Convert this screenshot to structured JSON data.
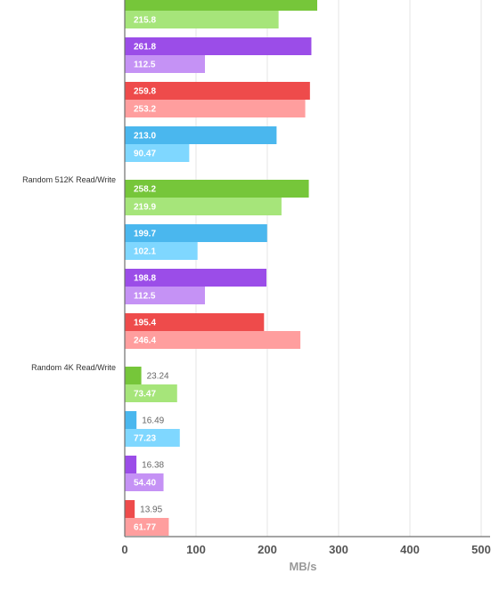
{
  "chart_data": {
    "type": "bar",
    "orientation": "horizontal",
    "xlabel": "MB/s",
    "xlim": [
      0,
      500
    ],
    "xticks": [
      0,
      100,
      200,
      300,
      400,
      500
    ],
    "grid": true,
    "groups": [
      {
        "label": "",
        "bars": [
          {
            "values": [
              270.0,
              215.8
            ],
            "labels": [
              "",
              "215.8"
            ],
            "colors": [
              "#76c63a",
              "#a6e57a"
            ]
          },
          {
            "values": [
              261.8,
              112.5
            ],
            "labels": [
              "261.8",
              "112.5"
            ],
            "colors": [
              "#9b4de8",
              "#c592f5"
            ]
          },
          {
            "values": [
              259.8,
              253.2
            ],
            "labels": [
              "259.8",
              "253.2"
            ],
            "colors": [
              "#ee4b4b",
              "#ff9e9e"
            ]
          },
          {
            "values": [
              213.0,
              90.47
            ],
            "labels": [
              "213.0",
              "90.47"
            ],
            "colors": [
              "#4ab7ee",
              "#7fd7ff"
            ]
          }
        ]
      },
      {
        "label": "Random 512K Read/Write",
        "bars": [
          {
            "values": [
              258.2,
              219.9
            ],
            "labels": [
              "258.2",
              "219.9"
            ],
            "colors": [
              "#76c63a",
              "#a6e57a"
            ]
          },
          {
            "values": [
              199.7,
              102.1
            ],
            "labels": [
              "199.7",
              "102.1"
            ],
            "colors": [
              "#4ab7ee",
              "#7fd7ff"
            ]
          },
          {
            "values": [
              198.8,
              112.5
            ],
            "labels": [
              "198.8",
              "112.5"
            ],
            "colors": [
              "#9b4de8",
              "#c592f5"
            ]
          },
          {
            "values": [
              195.4,
              246.4
            ],
            "labels": [
              "195.4",
              "246.4"
            ],
            "colors": [
              "#ee4b4b",
              "#ff9e9e"
            ]
          }
        ]
      },
      {
        "label": "Random 4K Read/Write",
        "bars": [
          {
            "values": [
              23.24,
              73.47
            ],
            "labels": [
              "23.24",
              "73.47"
            ],
            "colors": [
              "#76c63a",
              "#a6e57a"
            ]
          },
          {
            "values": [
              16.49,
              77.23
            ],
            "labels": [
              "16.49",
              "77.23"
            ],
            "colors": [
              "#4ab7ee",
              "#7fd7ff"
            ]
          },
          {
            "values": [
              16.38,
              54.4
            ],
            "labels": [
              "16.38",
              "54.40"
            ],
            "colors": [
              "#9b4de8",
              "#c592f5"
            ]
          },
          {
            "values": [
              13.95,
              61.77
            ],
            "labels": [
              "13.95",
              "61.77"
            ],
            "colors": [
              "#ee4b4b",
              "#ff9e9e"
            ]
          }
        ]
      }
    ]
  }
}
